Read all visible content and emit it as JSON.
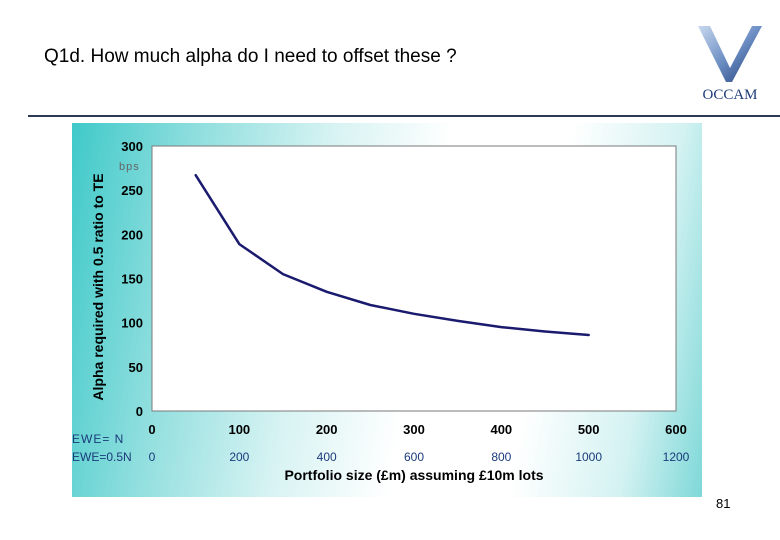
{
  "slide": {
    "title": "Q1d. How much alpha do I need to offset these ?",
    "logo_text": "OCCAM",
    "page_number": "81"
  },
  "chart_data": {
    "type": "line",
    "title": "",
    "xlabel": "Portfolio size (£m) assuming £10m lots",
    "ylabel": "Alpha required with 0.5 ratio to TE",
    "unit_label": "bps",
    "xlim": [
      0,
      600
    ],
    "ylim": [
      0,
      300
    ],
    "x_ticks": [
      "0",
      "100",
      "200",
      "300",
      "400",
      "500",
      "600"
    ],
    "y_ticks": [
      "0",
      "50",
      "100",
      "150",
      "200",
      "250",
      "300"
    ],
    "grid": false,
    "series": [
      {
        "x": [
          50,
          100,
          150,
          200,
          250,
          300,
          350,
          400,
          450,
          500
        ],
        "y": [
          267,
          189,
          155,
          135,
          120,
          110,
          102,
          95,
          90,
          86
        ],
        "color": "#1a1a6e"
      }
    ],
    "secondary_axis": {
      "row1_label": "EWE= N",
      "row2_label": "EWE=0.5N",
      "ticks": [
        "0",
        "200",
        "400",
        "600",
        "800",
        "1000",
        "1200"
      ]
    },
    "colors": {
      "line": "#1a1a6e",
      "axis": "#000000",
      "panel_left": "#40c9c9",
      "panel_right": "#7fd8d8"
    }
  }
}
